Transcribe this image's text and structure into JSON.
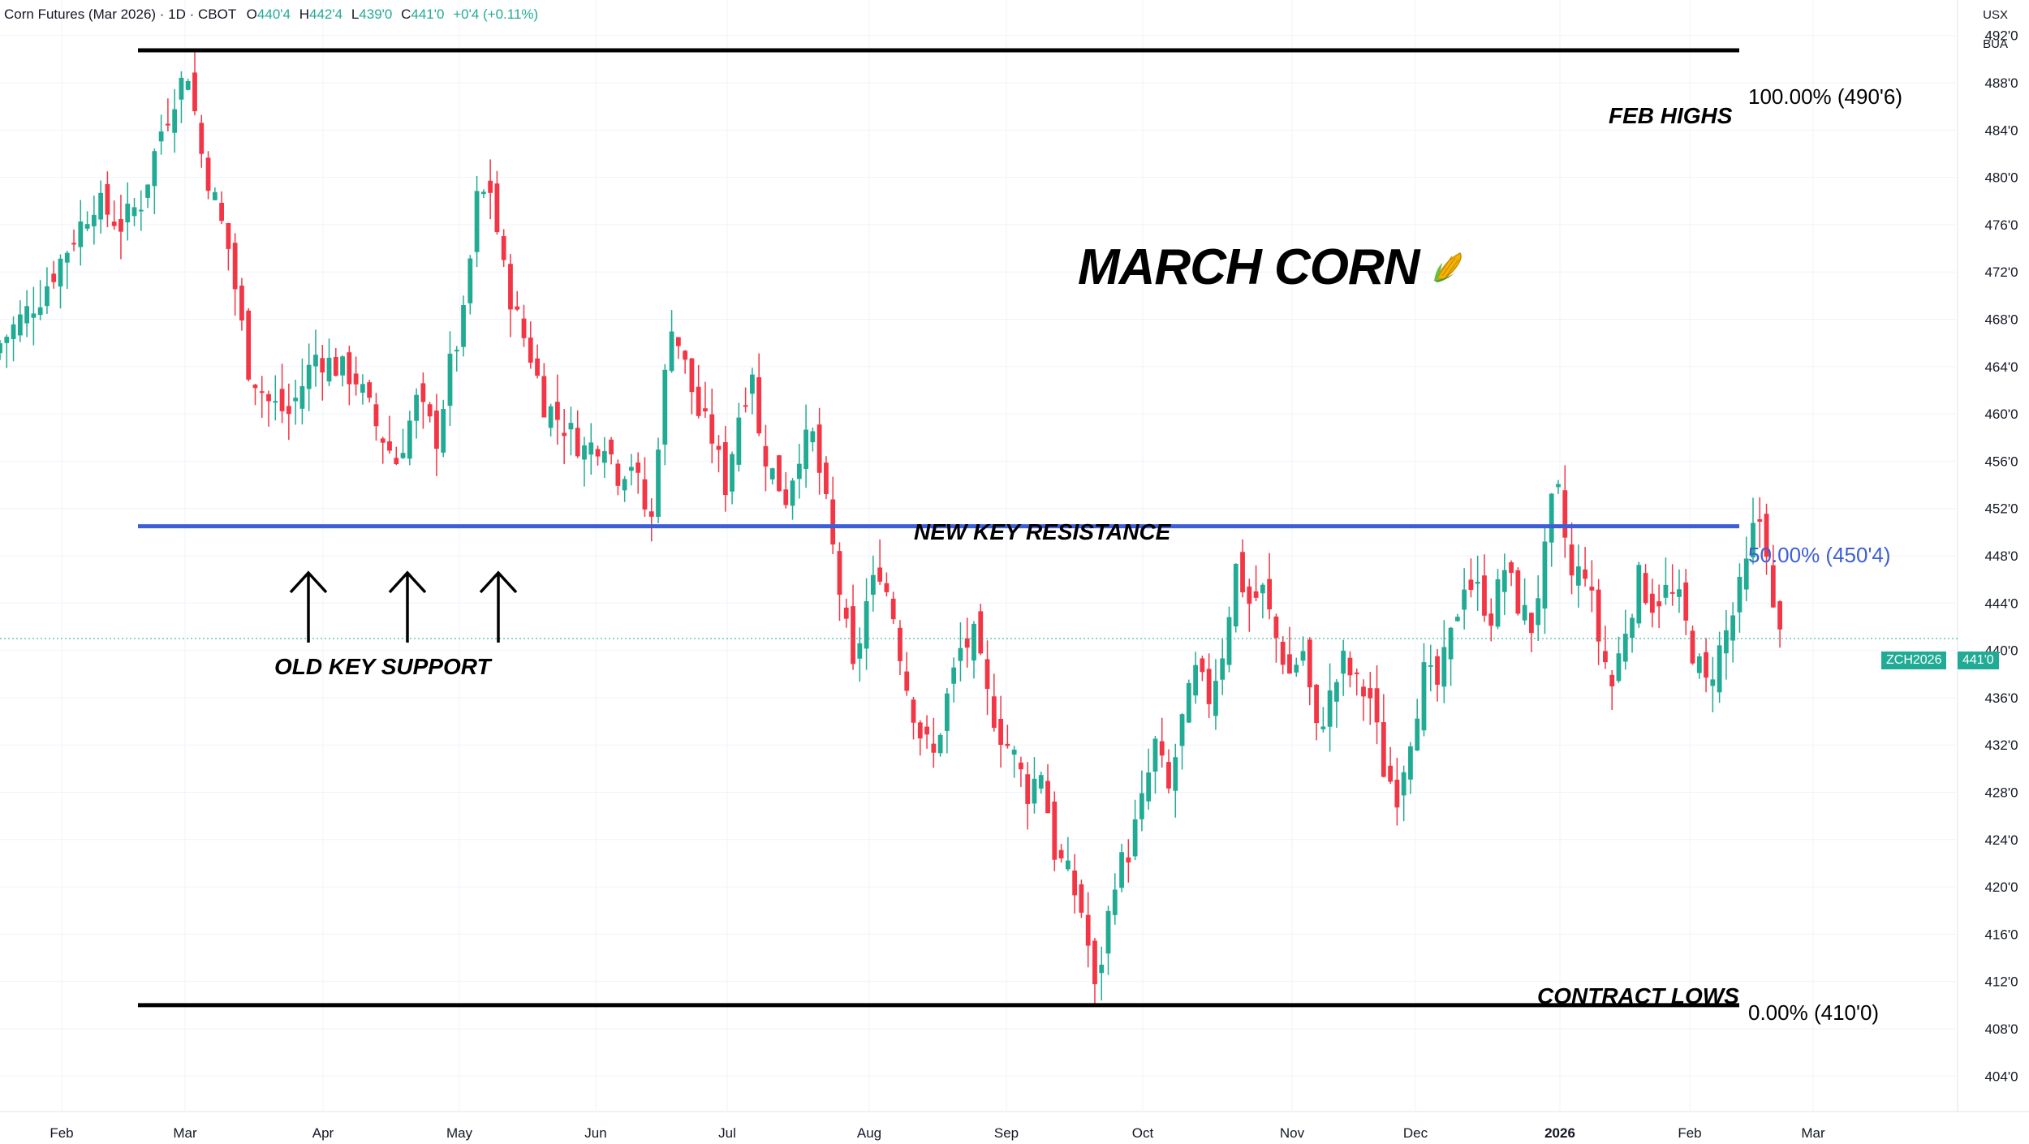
{
  "header": {
    "symbol_title": "Corn Futures (Mar 2026) · 1D · CBOT",
    "open_label": "O",
    "open_value": "440'4",
    "high_label": "H",
    "high_value": "442'4",
    "low_label": "L",
    "low_value": "439'0",
    "close_label": "C",
    "close_value": "441'0",
    "change": "+0'4 (+0.11%)"
  },
  "currency": {
    "line1": "USX",
    "line2": "BUA"
  },
  "title": "MARCH CORN",
  "title_icon": "corn-icon",
  "annotations": {
    "feb_highs": "FEB HIGHS",
    "new_key_resistance": "NEW KEY RESISTANCE",
    "old_key_support": "OLD KEY SUPPORT",
    "contract_lows": "CONTRACT LOWS"
  },
  "fib_levels": {
    "high": "100.00% (490'6)",
    "mid": "50.00% (450'4)",
    "low": "0.00% (410'0)"
  },
  "price_tag": {
    "symbol": "ZCH2026",
    "price": "441'0"
  },
  "colors": {
    "up": "#22ab94",
    "down": "#f23645",
    "fib_mid": "#3d5fd6",
    "fib_line": "#000000",
    "grid": "#f0f3fa",
    "axis_text": "#131722"
  },
  "chart_data": {
    "type": "candlestick",
    "y_ticks": [
      "404'0",
      "408'0",
      "412'0",
      "416'0",
      "420'0",
      "424'0",
      "428'0",
      "432'0",
      "436'0",
      "440'0",
      "444'0",
      "448'0",
      "452'0",
      "456'0",
      "460'0",
      "464'0",
      "468'0",
      "472'0",
      "476'0",
      "480'0",
      "484'0",
      "488'0",
      "492'0"
    ],
    "y_tick_values": [
      404,
      408,
      412,
      416,
      420,
      424,
      428,
      432,
      436,
      440,
      444,
      448,
      452,
      456,
      460,
      464,
      468,
      472,
      476,
      480,
      484,
      488,
      492
    ],
    "ylim": [
      401,
      495
    ],
    "x_ticks": [
      "Feb",
      "Mar",
      "Apr",
      "May",
      "Jun",
      "Jul",
      "Aug",
      "Sep",
      "Oct",
      "Nov",
      "Dec",
      "2026",
      "Feb",
      "Mar"
    ],
    "x_ticks_bold": [
      false,
      false,
      false,
      false,
      false,
      false,
      false,
      false,
      false,
      false,
      false,
      true,
      false,
      false
    ],
    "fib_values": {
      "high": 490.75,
      "mid": 450.5,
      "low": 410.0
    },
    "last_price": 441.0,
    "close_path": [
      [
        0,
        466
      ],
      [
        6,
        470
      ],
      [
        14,
        478
      ],
      [
        18,
        476
      ],
      [
        21,
        478
      ],
      [
        24,
        484
      ],
      [
        26,
        487
      ],
      [
        28,
        489
      ],
      [
        30,
        482
      ],
      [
        34,
        474
      ],
      [
        37,
        464
      ],
      [
        40,
        461
      ],
      [
        43,
        460
      ],
      [
        47,
        465
      ],
      [
        50,
        464
      ],
      [
        53,
        463
      ],
      [
        56,
        459
      ],
      [
        59,
        456
      ],
      [
        62,
        461
      ],
      [
        65,
        458
      ],
      [
        67,
        464
      ],
      [
        69,
        468
      ],
      [
        71,
        478
      ],
      [
        73,
        479
      ],
      [
        75,
        472
      ],
      [
        77,
        468
      ],
      [
        79,
        465
      ],
      [
        81,
        461
      ],
      [
        84,
        459
      ],
      [
        87,
        457
      ],
      [
        90,
        458
      ],
      [
        92,
        455
      ],
      [
        94,
        456
      ],
      [
        96,
        452
      ],
      [
        97,
        451
      ],
      [
        98,
        458
      ],
      [
        100,
        468
      ],
      [
        102,
        464
      ],
      [
        104,
        460
      ],
      [
        106,
        458
      ],
      [
        108,
        454
      ],
      [
        110,
        460
      ],
      [
        112,
        464
      ],
      [
        113,
        458
      ],
      [
        115,
        455
      ],
      [
        117,
        453
      ],
      [
        119,
        457
      ],
      [
        121,
        458
      ],
      [
        123,
        452
      ],
      [
        125,
        445
      ],
      [
        127,
        438
      ],
      [
        129,
        444
      ],
      [
        131,
        447
      ],
      [
        133,
        443
      ],
      [
        135,
        437
      ],
      [
        137,
        433
      ],
      [
        139,
        431
      ],
      [
        141,
        436
      ],
      [
        143,
        440
      ],
      [
        145,
        441
      ],
      [
        147,
        436
      ],
      [
        149,
        433
      ],
      [
        151,
        431
      ],
      [
        153,
        428
      ],
      [
        155,
        430
      ],
      [
        157,
        423
      ],
      [
        159,
        421
      ],
      [
        161,
        418
      ],
      [
        162,
        415
      ],
      [
        163,
        411
      ],
      [
        164,
        414
      ],
      [
        166,
        421
      ],
      [
        168,
        423
      ],
      [
        170,
        427
      ],
      [
        172,
        432
      ],
      [
        174,
        428
      ],
      [
        176,
        434
      ],
      [
        178,
        438
      ],
      [
        180,
        436
      ],
      [
        182,
        440
      ],
      [
        184,
        447
      ],
      [
        186,
        444
      ],
      [
        188,
        445
      ],
      [
        190,
        441
      ],
      [
        192,
        438
      ],
      [
        194,
        440
      ],
      [
        196,
        433
      ],
      [
        198,
        436
      ],
      [
        200,
        439
      ],
      [
        202,
        437
      ],
      [
        204,
        436
      ],
      [
        206,
        430
      ],
      [
        208,
        428
      ],
      [
        210,
        433
      ],
      [
        212,
        438
      ],
      [
        214,
        437
      ],
      [
        216,
        441
      ],
      [
        218,
        446
      ],
      [
        220,
        445
      ],
      [
        222,
        443
      ],
      [
        224,
        447
      ],
      [
        226,
        444
      ],
      [
        228,
        442
      ],
      [
        230,
        448
      ],
      [
        231,
        452
      ],
      [
        232,
        453
      ],
      [
        234,
        446
      ],
      [
        236,
        447
      ],
      [
        238,
        441
      ],
      [
        240,
        437
      ],
      [
        242,
        442
      ],
      [
        244,
        446
      ],
      [
        246,
        444
      ],
      [
        248,
        445
      ],
      [
        250,
        444
      ],
      [
        252,
        440
      ],
      [
        254,
        437
      ],
      [
        256,
        440
      ],
      [
        258,
        443
      ],
      [
        260,
        447
      ],
      [
        261,
        450
      ],
      [
        262,
        451
      ],
      [
        263,
        449
      ],
      [
        264,
        443
      ],
      [
        265,
        441
      ]
    ],
    "x_range": [
      0,
      290
    ]
  }
}
